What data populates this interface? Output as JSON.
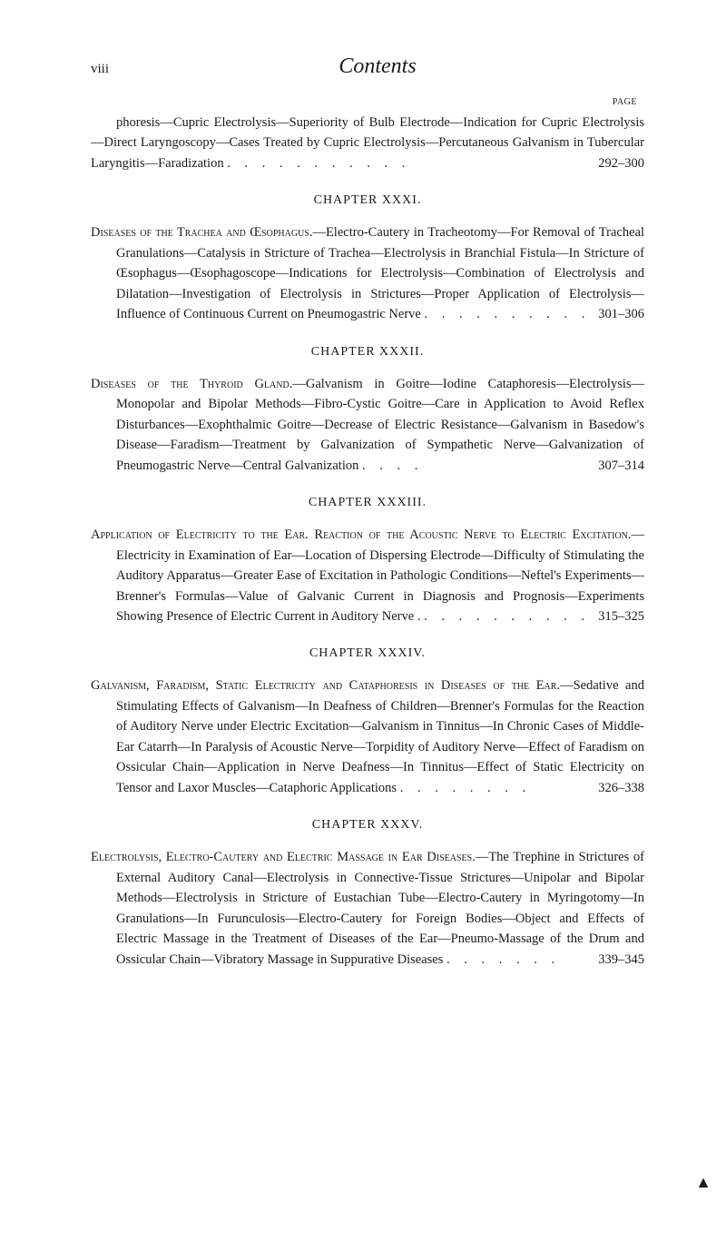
{
  "header": {
    "page_num": "viii",
    "title": "Contents",
    "page_label": "PAGE"
  },
  "entry0": {
    "text": "phoresis—Cupric Electrolysis—Superiority of Bulb Electrode—Indication for Cupric Electrolysis—Direct Laryngoscopy—Cases Treated by Cupric Electrolysis—Percutaneous Galvanism in Tubercular Laryngitis—Faradization",
    "range": "292–300"
  },
  "chapter31": "CHAPTER XXXI.",
  "entry31": {
    "caps": "Diseases of the Trachea and Œsophagus.",
    "text": "—Electro-Cautery in Tracheotomy—For Removal of Tracheal Granulations—Catalysis in Stricture of Trachea—Electrolysis in Branchial Fistula—In Stricture of Œsophagus—Œsophagoscope—Indications for Electrolysis—Combination of Electrolysis and Dilatation—Investigation of Electrolysis in Strictures—Proper Application of Electrolysis—Influence of Continuous Current on Pneumogastric Nerve",
    "range": "301–306"
  },
  "chapter32": "CHAPTER XXXII.",
  "entry32": {
    "caps": "Diseases of the Thyroid Gland.",
    "text": "—Galvanism in Goitre—Iodine Cataphoresis—Electrolysis—Monopolar and Bipolar Methods—Fibro-Cystic Goitre—Care in Application to Avoid Reflex Disturbances—Exophthalmic Goitre—Decrease of Electric Resistance—Galvanism in Basedow's Disease—Faradism—Treatment by Galvanization of Sympathetic Nerve—Galvanization of Pneumogastric Nerve—Central Galvanization",
    "range": "307–314"
  },
  "chapter33": "CHAPTER XXXIII.",
  "entry33": {
    "caps": "Application of Electricity to the Ear. Reaction of the Acoustic Nerve to Electric Excitation.",
    "text": "—Electricity in Examination of Ear—Location of Dispersing Electrode—Difficulty of Stimulating the Auditory Apparatus—Greater Ease of Excitation in Pathologic Conditions—Neftel's Experiments—Brenner's Formulas—Value of Galvanic Current in Diagnosis and Prognosis—Experiments Showing Presence of Electric Current in Auditory Nerve .",
    "range": "315–325"
  },
  "chapter34": "CHAPTER XXXIV.",
  "entry34": {
    "caps": "Galvanism, Faradism, Static Electricity and Cataphoresis in Diseases of the Ear.",
    "text": "—Sedative and Stimulating Effects of Galvanism—In Deafness of Children—Brenner's Formulas for the Reaction of Auditory Nerve under Electric Excitation—Galvanism in Tinnitus—In Chronic Cases of Middle-Ear Catarrh—In Paralysis of Acoustic Nerve—Torpidity of Auditory Nerve—Effect of Faradism on Ossicular Chain—Application in Nerve Deafness—In Tinnitus—Effect of Static Electricity on Tensor and Laxor Muscles—Cataphoric Applications",
    "range": "326–338"
  },
  "chapter35": "CHAPTER XXXV.",
  "entry35": {
    "caps": "Electrolysis, Electro-Cautery and Electric Massage in Ear Diseases.",
    "text": "—The Trephine in Strictures of External Auditory Canal—Electrolysis in Connective-Tissue Strictures—Unipolar and Bipolar Methods—Electrolysis in Stricture of Eustachian Tube—Electro-Cautery in Myringotomy—In Granulations—In Furunculosis—Electro-Cautery for Foreign Bodies—Object and Effects of Electric Massage in the Treatment of Diseases of the Ear—Pneumo-Massage of the Drum and Ossicular Chain—Vibratory Massage in Suppurative Diseases",
    "range": "339–345"
  }
}
